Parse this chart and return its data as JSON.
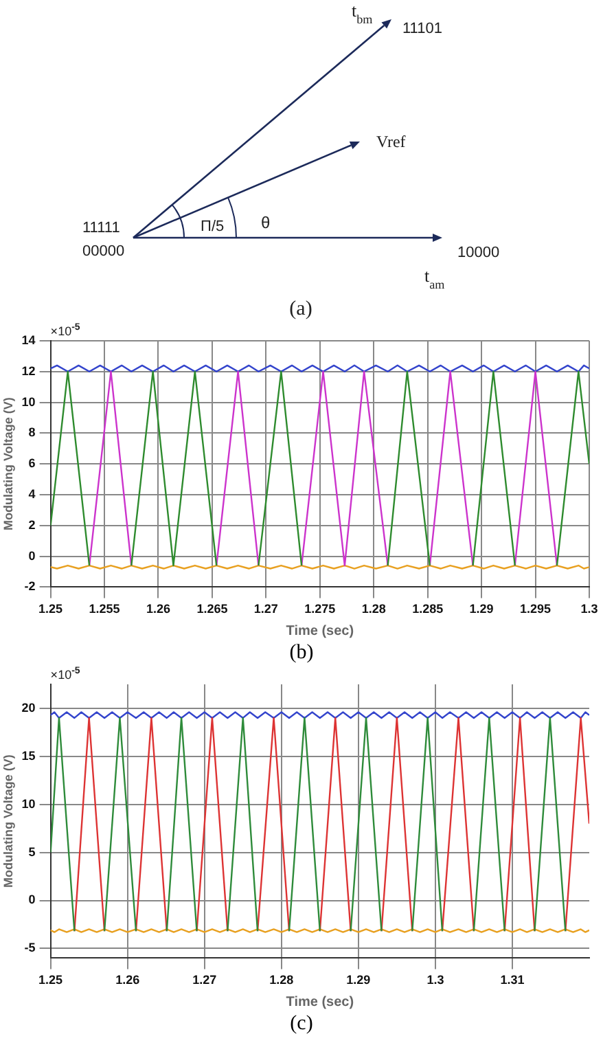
{
  "chart_data": [
    {
      "type": "other",
      "annotations": [
        "t$_{bm}$",
        "11101",
        "Vref",
        "11111",
        "00000",
        "Π/5",
        "θ",
        "10000",
        "t$_{am}$",
        "(a)"
      ]
    },
    {
      "type": "line",
      "xlabel": "Time (sec)",
      "ylabel": "Modulating Voltage (V)",
      "xlim": [
        1.25,
        1.3
      ],
      "xticks": [
        1.25,
        1.255,
        1.26,
        1.265,
        1.27,
        1.275,
        1.28,
        1.285,
        1.29,
        1.295,
        1.3
      ],
      "ylim": [
        -2,
        14
      ],
      "yticks": [
        -2,
        0,
        2,
        4,
        6,
        8,
        10,
        12,
        14
      ],
      "grid": true,
      "annotations": [
        "×10$^{-5}$",
        "(b)"
      ],
      "series": [
        {
          "type": "line",
          "color": "#2e8b2e",
          "x": [
            1.25,
            1.2516,
            1.2536,
            1.2555,
            1.2575,
            1.2595,
            1.2614,
            1.2634,
            1.2654,
            1.2674,
            1.2693,
            1.2714,
            1.2733,
            1.2773,
            1.2813,
            1.2831,
            1.2852,
            1.2871,
            1.2892,
            1.2911,
            1.2931,
            1.295,
            1.297,
            1.299,
            1.3
          ],
          "values": [
            2,
            12,
            -0.6,
            null,
            -0.6,
            12,
            -0.6,
            12,
            -0.6,
            null,
            -0.6,
            12,
            -0.6,
            null,
            -0.6,
            12,
            -0.6,
            null,
            -0.6,
            12,
            -0.6,
            null,
            -0.6,
            12,
            6
          ]
        },
        {
          "type": "line",
          "color": "#cc33cc",
          "x": [
            1.2536,
            1.2556,
            1.2575,
            1.2634,
            1.2654,
            1.2674,
            1.2693,
            1.2713,
            1.2733,
            1.2753,
            1.2773,
            1.2791,
            1.2813,
            1.2831,
            1.2852,
            1.2871,
            1.2892,
            1.2911,
            1.2931,
            1.295,
            1.297
          ],
          "values": [
            -0.6,
            12,
            -0.6,
            null,
            -0.6,
            12,
            -0.6,
            null,
            -0.6,
            12,
            -0.6,
            12,
            -0.6,
            null,
            -0.6,
            12,
            -0.6,
            null,
            -0.6,
            12,
            -0.6
          ]
        },
        {
          "type": "line",
          "color": "#3344cc",
          "x": [
            1.25,
            1.2506,
            1.2516,
            1.2526,
            1.2536,
            1.2546,
            1.2556,
            1.2566,
            1.2575,
            1.2585,
            1.2595,
            1.2605,
            1.2614,
            1.2624,
            1.2634,
            1.2644,
            1.2654,
            1.2664,
            1.2674,
            1.2684,
            1.2693,
            1.2704,
            1.2714,
            1.2724,
            1.2733,
            1.2743,
            1.2753,
            1.2763,
            1.2773,
            1.2782,
            1.2791,
            1.2802,
            1.2813,
            1.2822,
            1.2831,
            1.2842,
            1.2852,
            1.2862,
            1.2871,
            1.2882,
            1.2892,
            1.2902,
            1.2911,
            1.2921,
            1.2931,
            1.2941,
            1.295,
            1.296,
            1.297,
            1.298,
            1.299,
            1.2995,
            1.3
          ],
          "values": [
            12.2,
            12.4,
            12.0,
            12.4,
            12.0,
            12.4,
            12.0,
            12.4,
            12.0,
            12.4,
            12.0,
            12.4,
            12.0,
            12.4,
            12.0,
            12.4,
            12.0,
            12.4,
            12.0,
            12.4,
            12.0,
            12.4,
            12.0,
            12.4,
            12.0,
            12.4,
            12.0,
            12.4,
            12.0,
            12.4,
            12.0,
            12.4,
            12.0,
            12.4,
            12.0,
            12.4,
            12.0,
            12.4,
            12.0,
            12.4,
            12.0,
            12.4,
            12.0,
            12.4,
            12.0,
            12.4,
            12.0,
            12.4,
            12.0,
            12.4,
            12.0,
            12.4,
            12.2
          ]
        },
        {
          "type": "line",
          "color": "#e8a020",
          "x": [
            1.25,
            1.2506,
            1.2516,
            1.2526,
            1.2536,
            1.2546,
            1.2556,
            1.2566,
            1.2575,
            1.2585,
            1.2595,
            1.2605,
            1.2614,
            1.2624,
            1.2634,
            1.2644,
            1.2654,
            1.2664,
            1.2674,
            1.2684,
            1.2693,
            1.2704,
            1.2714,
            1.2724,
            1.2733,
            1.2743,
            1.2753,
            1.2763,
            1.2773,
            1.2782,
            1.2791,
            1.2802,
            1.2813,
            1.2822,
            1.2831,
            1.2842,
            1.2852,
            1.2862,
            1.2871,
            1.2882,
            1.2892,
            1.2902,
            1.2911,
            1.2921,
            1.2931,
            1.2941,
            1.295,
            1.296,
            1.297,
            1.298,
            1.299,
            1.2995,
            1.3
          ],
          "values": [
            -0.7,
            -0.8,
            -0.6,
            -0.8,
            -0.6,
            -0.8,
            -0.6,
            -0.8,
            -0.6,
            -0.8,
            -0.6,
            -0.8,
            -0.6,
            -0.8,
            -0.6,
            -0.8,
            -0.6,
            -0.8,
            -0.6,
            -0.8,
            -0.6,
            -0.8,
            -0.6,
            -0.8,
            -0.6,
            -0.8,
            -0.6,
            -0.8,
            -0.6,
            -0.8,
            -0.6,
            -0.8,
            -0.6,
            -0.8,
            -0.6,
            -0.8,
            -0.6,
            -0.8,
            -0.6,
            -0.8,
            -0.6,
            -0.8,
            -0.6,
            -0.8,
            -0.6,
            -0.8,
            -0.6,
            -0.8,
            -0.6,
            -0.8,
            -0.6,
            -0.8,
            -0.7
          ]
        }
      ]
    },
    {
      "type": "line",
      "xlabel": "Time (sec)",
      "ylabel": "Modulating Voltage (V)",
      "xlim": [
        1.25,
        1.32
      ],
      "xticks": [
        1.25,
        1.26,
        1.27,
        1.28,
        1.29,
        1.3,
        1.31
      ],
      "ylim": [
        -6,
        22.5
      ],
      "yticks": [
        -5,
        0,
        5,
        10,
        15,
        20
      ],
      "grid": true,
      "annotations": [
        "×10$^{-5}$",
        "(c)"
      ],
      "series": [
        {
          "type": "line",
          "color": "#2e8b3a",
          "x": [
            1.25,
            1.2511,
            1.2531,
            1.255,
            1.257,
            1.259,
            1.2611,
            1.2631,
            1.2651,
            1.267,
            1.269,
            1.271,
            1.273,
            1.275,
            1.2769,
            1.279,
            1.281,
            1.283,
            1.285,
            1.287,
            1.289,
            1.291,
            1.293,
            1.295,
            1.297,
            1.299,
            1.3009,
            1.303,
            1.305,
            1.307,
            1.309,
            1.311,
            1.3129,
            1.3149,
            1.3169
          ],
          "values": [
            5,
            19,
            -3.2,
            null,
            -3.2,
            19,
            -3.2,
            null,
            -3.2,
            19,
            -3.2,
            null,
            -3.2,
            19,
            -3.2,
            null,
            -3.2,
            19,
            -3.2,
            null,
            -3.2,
            19,
            -3.2,
            null,
            -3.2,
            19,
            -3.2,
            null,
            -3.2,
            19,
            -3.2,
            null,
            -3.2,
            19,
            -3.2
          ]
        },
        {
          "type": "line",
          "color": "#dd3333",
          "x": [
            1.2531,
            1.255,
            1.257,
            1.259,
            1.2611,
            1.2631,
            1.2651,
            1.267,
            1.269,
            1.271,
            1.273,
            1.275,
            1.2769,
            1.279,
            1.281,
            1.283,
            1.285,
            1.287,
            1.289,
            1.291,
            1.293,
            1.295,
            1.297,
            1.299,
            1.3009,
            1.303,
            1.305,
            1.307,
            1.309,
            1.311,
            1.3129,
            1.3149,
            1.3169,
            1.3189,
            1.32
          ],
          "values": [
            -3.2,
            19,
            -3.2,
            null,
            -3.2,
            19,
            -3.2,
            null,
            -3.2,
            19,
            -3.2,
            null,
            -3.2,
            19,
            -3.2,
            null,
            -3.2,
            19,
            -3.2,
            null,
            -3.2,
            19,
            -3.2,
            null,
            -3.2,
            19,
            -3.2,
            null,
            -3.2,
            19,
            -3.2,
            null,
            -3.2,
            19,
            8
          ]
        },
        {
          "type": "line",
          "color": "#3344cc",
          "x": [
            1.25,
            1.2505,
            1.2511,
            1.2521,
            1.2531,
            1.254,
            1.255,
            1.256,
            1.257,
            1.258,
            1.259,
            1.26,
            1.2611,
            1.2621,
            1.2631,
            1.2641,
            1.2651,
            1.266,
            1.267,
            1.268,
            1.269,
            1.27,
            1.271,
            1.272,
            1.273,
            1.274,
            1.275,
            1.2759,
            1.2769,
            1.2779,
            1.279,
            1.28,
            1.281,
            1.282,
            1.283,
            1.284,
            1.285,
            1.286,
            1.287,
            1.288,
            1.289,
            1.29,
            1.291,
            1.292,
            1.293,
            1.294,
            1.295,
            1.296,
            1.297,
            1.298,
            1.299,
            1.3,
            1.3009,
            1.3019,
            1.303,
            1.304,
            1.305,
            1.306,
            1.307,
            1.308,
            1.309,
            1.31,
            1.311,
            1.3119,
            1.3129,
            1.3139,
            1.3149,
            1.3159,
            1.3169,
            1.3179,
            1.3189,
            1.3195,
            1.32
          ],
          "values": [
            19.3,
            19.6,
            19.0,
            19.6,
            19.0,
            19.6,
            19.0,
            19.6,
            19.0,
            19.6,
            19.0,
            19.6,
            19.0,
            19.6,
            19.0,
            19.6,
            19.0,
            19.6,
            19.0,
            19.6,
            19.0,
            19.6,
            19.0,
            19.6,
            19.0,
            19.6,
            19.0,
            19.6,
            19.0,
            19.6,
            19.0,
            19.6,
            19.0,
            19.6,
            19.0,
            19.6,
            19.0,
            19.6,
            19.0,
            19.6,
            19.0,
            19.6,
            19.0,
            19.6,
            19.0,
            19.6,
            19.0,
            19.6,
            19.0,
            19.6,
            19.0,
            19.6,
            19.0,
            19.6,
            19.0,
            19.6,
            19.0,
            19.6,
            19.0,
            19.6,
            19.0,
            19.6,
            19.0,
            19.6,
            19.0,
            19.6,
            19.0,
            19.6,
            19.0,
            19.6,
            19.0,
            19.6,
            19.3
          ]
        },
        {
          "type": "line",
          "color": "#e8a020",
          "x": [
            1.25,
            1.2505,
            1.2511,
            1.2521,
            1.2531,
            1.254,
            1.255,
            1.256,
            1.257,
            1.258,
            1.259,
            1.26,
            1.2611,
            1.2621,
            1.2631,
            1.2641,
            1.2651,
            1.266,
            1.267,
            1.268,
            1.269,
            1.27,
            1.271,
            1.272,
            1.273,
            1.274,
            1.275,
            1.2759,
            1.2769,
            1.2779,
            1.279,
            1.28,
            1.281,
            1.282,
            1.283,
            1.284,
            1.285,
            1.286,
            1.287,
            1.288,
            1.289,
            1.29,
            1.291,
            1.292,
            1.293,
            1.294,
            1.295,
            1.296,
            1.297,
            1.298,
            1.299,
            1.3,
            1.3009,
            1.3019,
            1.303,
            1.304,
            1.305,
            1.306,
            1.307,
            1.308,
            1.309,
            1.31,
            1.311,
            1.3119,
            1.3129,
            1.3139,
            1.3149,
            1.3159,
            1.3169,
            1.3179,
            1.3189,
            1.3195,
            1.32
          ],
          "values": [
            -3.1,
            -3.3,
            -3.0,
            -3.3,
            -3.0,
            -3.3,
            -3.0,
            -3.3,
            -3.0,
            -3.3,
            -3.0,
            -3.3,
            -3.0,
            -3.3,
            -3.0,
            -3.3,
            -3.0,
            -3.3,
            -3.0,
            -3.3,
            -3.0,
            -3.3,
            -3.0,
            -3.3,
            -3.0,
            -3.3,
            -3.0,
            -3.3,
            -3.0,
            -3.3,
            -3.0,
            -3.3,
            -3.0,
            -3.3,
            -3.0,
            -3.3,
            -3.0,
            -3.3,
            -3.0,
            -3.3,
            -3.0,
            -3.3,
            -3.0,
            -3.3,
            -3.0,
            -3.3,
            -3.0,
            -3.3,
            -3.0,
            -3.3,
            -3.0,
            -3.3,
            -3.0,
            -3.3,
            -3.0,
            -3.3,
            -3.0,
            -3.3,
            -3.0,
            -3.3,
            -3.0,
            -3.3,
            -3.0,
            -3.3,
            -3.0,
            -3.3,
            -3.0,
            -3.3,
            -3.0,
            -3.3,
            -3.0,
            -3.3,
            -3.1
          ]
        }
      ]
    }
  ]
}
